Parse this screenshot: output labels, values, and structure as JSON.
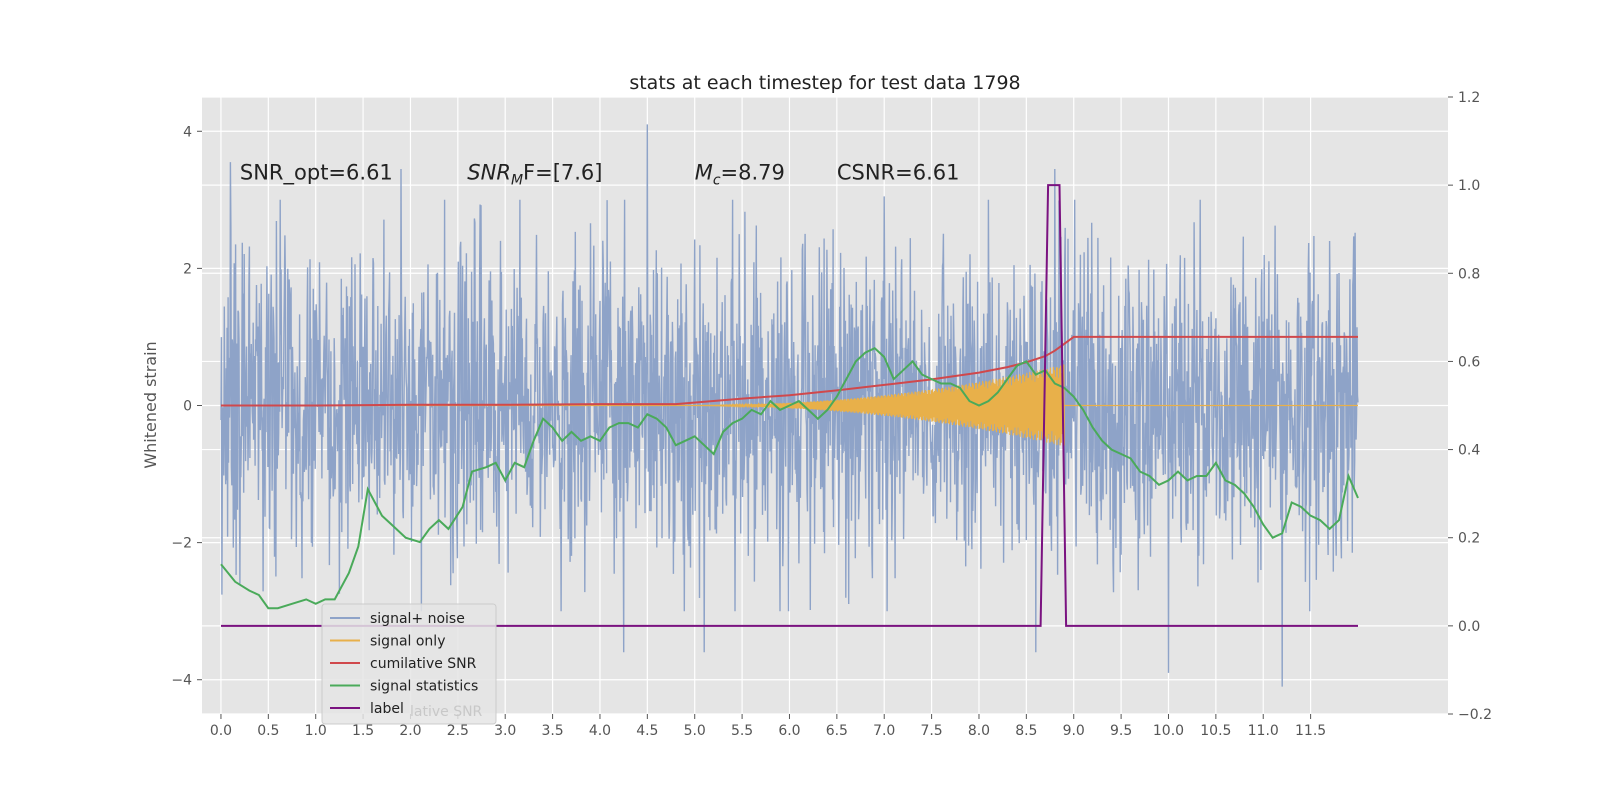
{
  "chart_data": {
    "type": "line",
    "title": "stats at each timestep for test data 1798",
    "ylabel": "Whitened strain",
    "xlabel": "",
    "xlim": [
      -0.2,
      12.95
    ],
    "ylim": [
      -4.5,
      4.5
    ],
    "y2lim": [
      -0.2,
      1.2
    ],
    "grid": true,
    "legend_position": "lower-left",
    "x_ticks": [
      "0.0",
      "0.5",
      "1.0",
      "1.5",
      "2.0",
      "2.5",
      "3.0",
      "3.5",
      "4.0",
      "4.5",
      "5.0",
      "5.5",
      "6.0",
      "6.5",
      "7.0",
      "7.5",
      "8.0",
      "8.5",
      "9.0",
      "9.5",
      "10.0",
      "10.5",
      "11.0",
      "11.5"
    ],
    "y_ticks": [
      "4",
      "2",
      "0",
      "−2",
      "−4"
    ],
    "y2_ticks": [
      "1.2",
      "1.0",
      "0.8",
      "0.6",
      "0.4",
      "0.2",
      "0.0",
      "−0.2"
    ],
    "annotations": [
      {
        "label": "SNR_opt=6.61",
        "italic_prefix": "",
        "sub": "",
        "rest": ""
      },
      {
        "label": "",
        "italic_prefix": "SNR",
        "sub": "M",
        "rest": "F=[7.6]"
      },
      {
        "label": "",
        "italic_prefix": "M",
        "sub": "c",
        "rest": "=8.79"
      },
      {
        "label": "CSNR=6.61",
        "italic_prefix": "",
        "sub": "",
        "rest": ""
      }
    ],
    "annotation_x": [
      0.2,
      2.6,
      5.0,
      6.5
    ],
    "annotation_y": 3.3,
    "legend": [
      "signal+ noise",
      "signal only",
      "cumilative SNR",
      "signal statistics",
      "label"
    ],
    "legend_hidden_text": "lative SNR",
    "colors": {
      "noise": "#8ea3c8",
      "signal": "#e8b04a",
      "csnr": "#d0484c",
      "stats": "#4aaa5a",
      "label": "#7a1280",
      "plot_bg": "#e5e5e5",
      "grid": "#ffffff"
    },
    "series": [
      {
        "name": "signal+ noise",
        "axis": "left",
        "kind": "noise",
        "x_range": [
          0.0,
          12.0
        ],
        "amplitude": 1.15,
        "spikes": [
          {
            "x": 0.1,
            "y": 3.55
          },
          {
            "x": 1.9,
            "y": 3.45
          },
          {
            "x": 4.25,
            "y": -3.6
          },
          {
            "x": 4.5,
            "y": 4.1
          },
          {
            "x": 5.1,
            "y": -3.6
          },
          {
            "x": 5.4,
            "y": 3.0
          },
          {
            "x": 7.0,
            "y": 3.05
          },
          {
            "x": 8.1,
            "y": 3.0
          },
          {
            "x": 8.6,
            "y": -3.6
          },
          {
            "x": 8.8,
            "y": 3.45
          },
          {
            "x": 10.0,
            "y": -3.9
          },
          {
            "x": 11.2,
            "y": -4.1
          },
          {
            "x": 11.7,
            "y": 2.4
          },
          {
            "x": 0.2,
            "y": -2.6
          }
        ]
      },
      {
        "name": "signal only",
        "axis": "left",
        "kind": "chirp",
        "x_range": [
          4.8,
          8.9
        ],
        "envelope_end": 0.6
      },
      {
        "name": "cumilative SNR",
        "axis": "left",
        "x": [
          0.0,
          1.0,
          2.0,
          3.0,
          4.0,
          4.8,
          5.5,
          6.0,
          6.5,
          7.0,
          7.5,
          8.0,
          8.3,
          8.5,
          8.7,
          8.8,
          8.9,
          9.0,
          10.0,
          11.0,
          12.0
        ],
        "y": [
          0.0,
          0.0,
          0.01,
          0.01,
          0.02,
          0.02,
          0.1,
          0.15,
          0.22,
          0.3,
          0.38,
          0.48,
          0.56,
          0.63,
          0.72,
          0.8,
          0.9,
          1.0,
          1.0,
          1.0,
          1.0
        ]
      },
      {
        "name": "signal statistics",
        "axis": "right",
        "x": [
          0.0,
          0.15,
          0.3,
          0.4,
          0.5,
          0.6,
          0.75,
          0.9,
          1.0,
          1.1,
          1.2,
          1.35,
          1.45,
          1.55,
          1.7,
          1.8,
          1.95,
          2.1,
          2.2,
          2.3,
          2.4,
          2.55,
          2.65,
          2.8,
          2.9,
          3.0,
          3.1,
          3.2,
          3.3,
          3.4,
          3.5,
          3.6,
          3.7,
          3.8,
          3.9,
          4.0,
          4.1,
          4.2,
          4.3,
          4.4,
          4.5,
          4.6,
          4.7,
          4.8,
          4.9,
          5.0,
          5.1,
          5.2,
          5.3,
          5.4,
          5.5,
          5.6,
          5.7,
          5.8,
          5.9,
          6.0,
          6.1,
          6.2,
          6.3,
          6.4,
          6.5,
          6.6,
          6.7,
          6.8,
          6.9,
          7.0,
          7.1,
          7.2,
          7.3,
          7.4,
          7.5,
          7.6,
          7.7,
          7.8,
          7.9,
          8.0,
          8.1,
          8.2,
          8.3,
          8.4,
          8.5,
          8.6,
          8.7,
          8.8,
          8.9,
          9.0,
          9.1,
          9.2,
          9.3,
          9.4,
          9.5,
          9.6,
          9.7,
          9.8,
          9.9,
          10.0,
          10.1,
          10.2,
          10.3,
          10.4,
          10.5,
          10.6,
          10.7,
          10.8,
          10.9,
          11.0,
          11.1,
          11.2,
          11.3,
          11.4,
          11.5,
          11.6,
          11.7,
          11.8,
          11.9,
          12.0
        ],
        "y": [
          0.14,
          0.1,
          0.08,
          0.07,
          0.04,
          0.04,
          0.05,
          0.06,
          0.05,
          0.06,
          0.06,
          0.12,
          0.18,
          0.31,
          0.25,
          0.23,
          0.2,
          0.19,
          0.22,
          0.24,
          0.22,
          0.27,
          0.35,
          0.36,
          0.37,
          0.33,
          0.37,
          0.36,
          0.42,
          0.47,
          0.45,
          0.42,
          0.44,
          0.42,
          0.43,
          0.42,
          0.45,
          0.46,
          0.46,
          0.45,
          0.48,
          0.47,
          0.45,
          0.41,
          0.42,
          0.43,
          0.41,
          0.39,
          0.44,
          0.46,
          0.47,
          0.49,
          0.48,
          0.51,
          0.49,
          0.5,
          0.51,
          0.49,
          0.47,
          0.49,
          0.52,
          0.56,
          0.6,
          0.62,
          0.63,
          0.61,
          0.56,
          0.58,
          0.6,
          0.57,
          0.56,
          0.55,
          0.55,
          0.54,
          0.51,
          0.5,
          0.51,
          0.53,
          0.56,
          0.59,
          0.6,
          0.57,
          0.58,
          0.55,
          0.54,
          0.52,
          0.49,
          0.45,
          0.42,
          0.4,
          0.39,
          0.38,
          0.35,
          0.34,
          0.32,
          0.33,
          0.35,
          0.33,
          0.34,
          0.34,
          0.37,
          0.33,
          0.32,
          0.3,
          0.27,
          0.23,
          0.2,
          0.21,
          0.28,
          0.27,
          0.25,
          0.24,
          0.22,
          0.24,
          0.34,
          0.29
        ]
      },
      {
        "name": "label",
        "axis": "right",
        "x": [
          0.0,
          8.65,
          8.73,
          8.85,
          8.92,
          12.0
        ],
        "y": [
          0.0,
          0.0,
          1.0,
          1.0,
          0.0,
          0.0
        ]
      }
    ]
  }
}
